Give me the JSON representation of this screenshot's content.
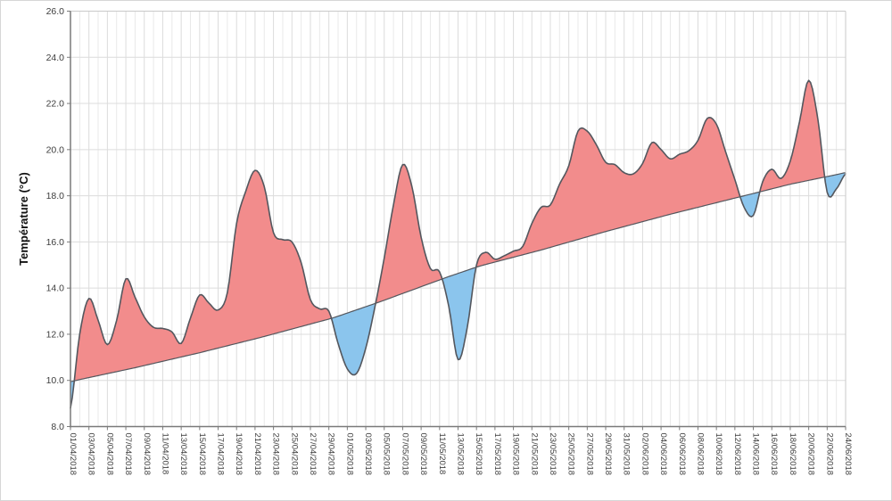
{
  "chart_data": {
    "type": "area",
    "title": "",
    "ylabel": "Température (°C)",
    "xlabel": "",
    "ylim": [
      8,
      26
    ],
    "ytick_step": 2,
    "y_tick_labels": [
      "8.0",
      "10.0",
      "12.0",
      "14.0",
      "16.0",
      "18.0",
      "20.0",
      "22.0",
      "24.0",
      "26.0"
    ],
    "grid": "on",
    "legend": "none",
    "x_tick_labels": [
      "01/04/2018",
      "03/04/2018",
      "05/04/2018",
      "07/04/2018",
      "09/04/2018",
      "11/04/2018",
      "13/04/2018",
      "15/04/2018",
      "17/04/2018",
      "19/04/2018",
      "21/04/2018",
      "23/04/2018",
      "25/04/2018",
      "27/04/2018",
      "29/04/2018",
      "01/05/2018",
      "03/05/2018",
      "05/05/2018",
      "07/05/2018",
      "09/05/2018",
      "11/05/2018",
      "13/05/2018",
      "15/05/2018",
      "17/05/2018",
      "19/05/2018",
      "21/05/2018",
      "23/05/2018",
      "25/05/2018",
      "27/05/2018",
      "29/05/2018",
      "31/05/2018",
      "02/06/2018",
      "04/06/2018",
      "06/06/2018",
      "08/06/2018",
      "10/06/2018",
      "12/06/2018",
      "14/06/2018",
      "16/06/2018",
      "18/06/2018",
      "20/06/2018",
      "22/06/2018",
      "24/06/2018"
    ],
    "x_tick_interval_days": 2,
    "series": [
      {
        "name": "temperature",
        "unit": "°C",
        "values": [
          8.8,
          12.0,
          13.55,
          12.6,
          11.55,
          12.6,
          14.4,
          13.6,
          12.75,
          12.3,
          12.25,
          12.1,
          11.6,
          12.7,
          13.7,
          13.35,
          13.05,
          13.8,
          16.8,
          18.2,
          19.1,
          18.4,
          16.4,
          16.1,
          16.0,
          15.1,
          13.5,
          13.1,
          13.0,
          11.6,
          10.5,
          10.3,
          11.4,
          13.2,
          15.3,
          17.6,
          19.35,
          18.4,
          16.2,
          14.85,
          14.7,
          13.2,
          10.9,
          12.3,
          15.0,
          15.55,
          15.25,
          15.4,
          15.6,
          15.8,
          16.8,
          17.5,
          17.6,
          18.5,
          19.3,
          20.8,
          20.8,
          20.2,
          19.45,
          19.35,
          19.0,
          18.95,
          19.4,
          20.3,
          20.0,
          19.6,
          19.8,
          19.95,
          20.4,
          21.35,
          21.1,
          19.9,
          18.7,
          17.5,
          17.15,
          18.6,
          19.15,
          18.75,
          19.5,
          21.2,
          23.0,
          21.3,
          18.15,
          18.3,
          18.95
        ]
      },
      {
        "name": "baseline",
        "unit": "°C",
        "control_points": [
          [
            0,
            9.95
          ],
          [
            7,
            10.55
          ],
          [
            14,
            11.2
          ],
          [
            20.5,
            11.85
          ],
          [
            28.4,
            12.7
          ],
          [
            33.5,
            13.4
          ],
          [
            41,
            14.5
          ],
          [
            44.3,
            14.95
          ],
          [
            51,
            15.65
          ],
          [
            58,
            16.45
          ],
          [
            65,
            17.2
          ],
          [
            73,
            18.0
          ],
          [
            78,
            18.5
          ],
          [
            84,
            19.0
          ]
        ]
      }
    ],
    "colors": {
      "fill_above": "#F28C8C",
      "fill_below": "#8BC5ED",
      "line": "#54575E",
      "grid_major": "#dcdcdc",
      "grid_minor": "#e9e9e9",
      "axis": "#7a7a7a",
      "border": "#c9c9c9",
      "label": "#3d3d3d"
    }
  }
}
